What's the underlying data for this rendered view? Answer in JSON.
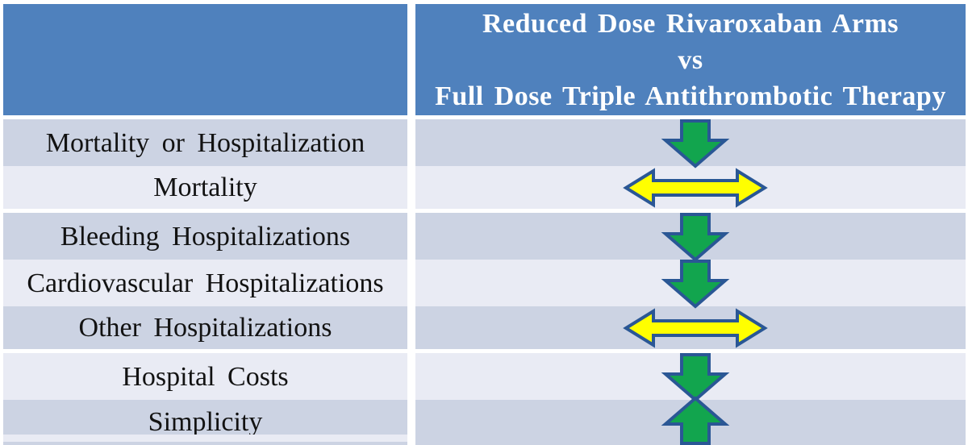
{
  "table": {
    "header": {
      "left_cell_text": "",
      "title_lines": [
        "Reduced Dose Rivaroxaban Arms",
        "vs",
        "Full Dose Triple Antithrombotic Therapy"
      ]
    },
    "rows": [
      {
        "label": "Mortality or Hospitalization",
        "arrow": "green-down-arrow"
      },
      {
        "label": "Mortality",
        "arrow": "yellow-left-right-arrow"
      },
      {
        "label": "Bleeding Hospitalizations",
        "arrow": "green-down-arrow"
      },
      {
        "label": "Cardiovascular Hospitalizations",
        "arrow": "green-down-arrow"
      },
      {
        "label": "Other Hospitalizations",
        "arrow": "yellow-left-right-arrow"
      },
      {
        "label": "Hospital Costs",
        "arrow": "green-down-arrow"
      },
      {
        "label": "Simplicity",
        "arrow": "green-up-arrow"
      }
    ]
  },
  "colors": {
    "header_bg": "#4F81BD",
    "header_text": "#FFFFFF",
    "row_dark": "#CCD3E3",
    "row_light": "#E9EBF4",
    "label_text": "#121212",
    "arrow_green": "#12A54E",
    "arrow_yellow": "#FFFF00",
    "arrow_outline": "#2A5795",
    "page_bg": "#FFFFFF"
  }
}
